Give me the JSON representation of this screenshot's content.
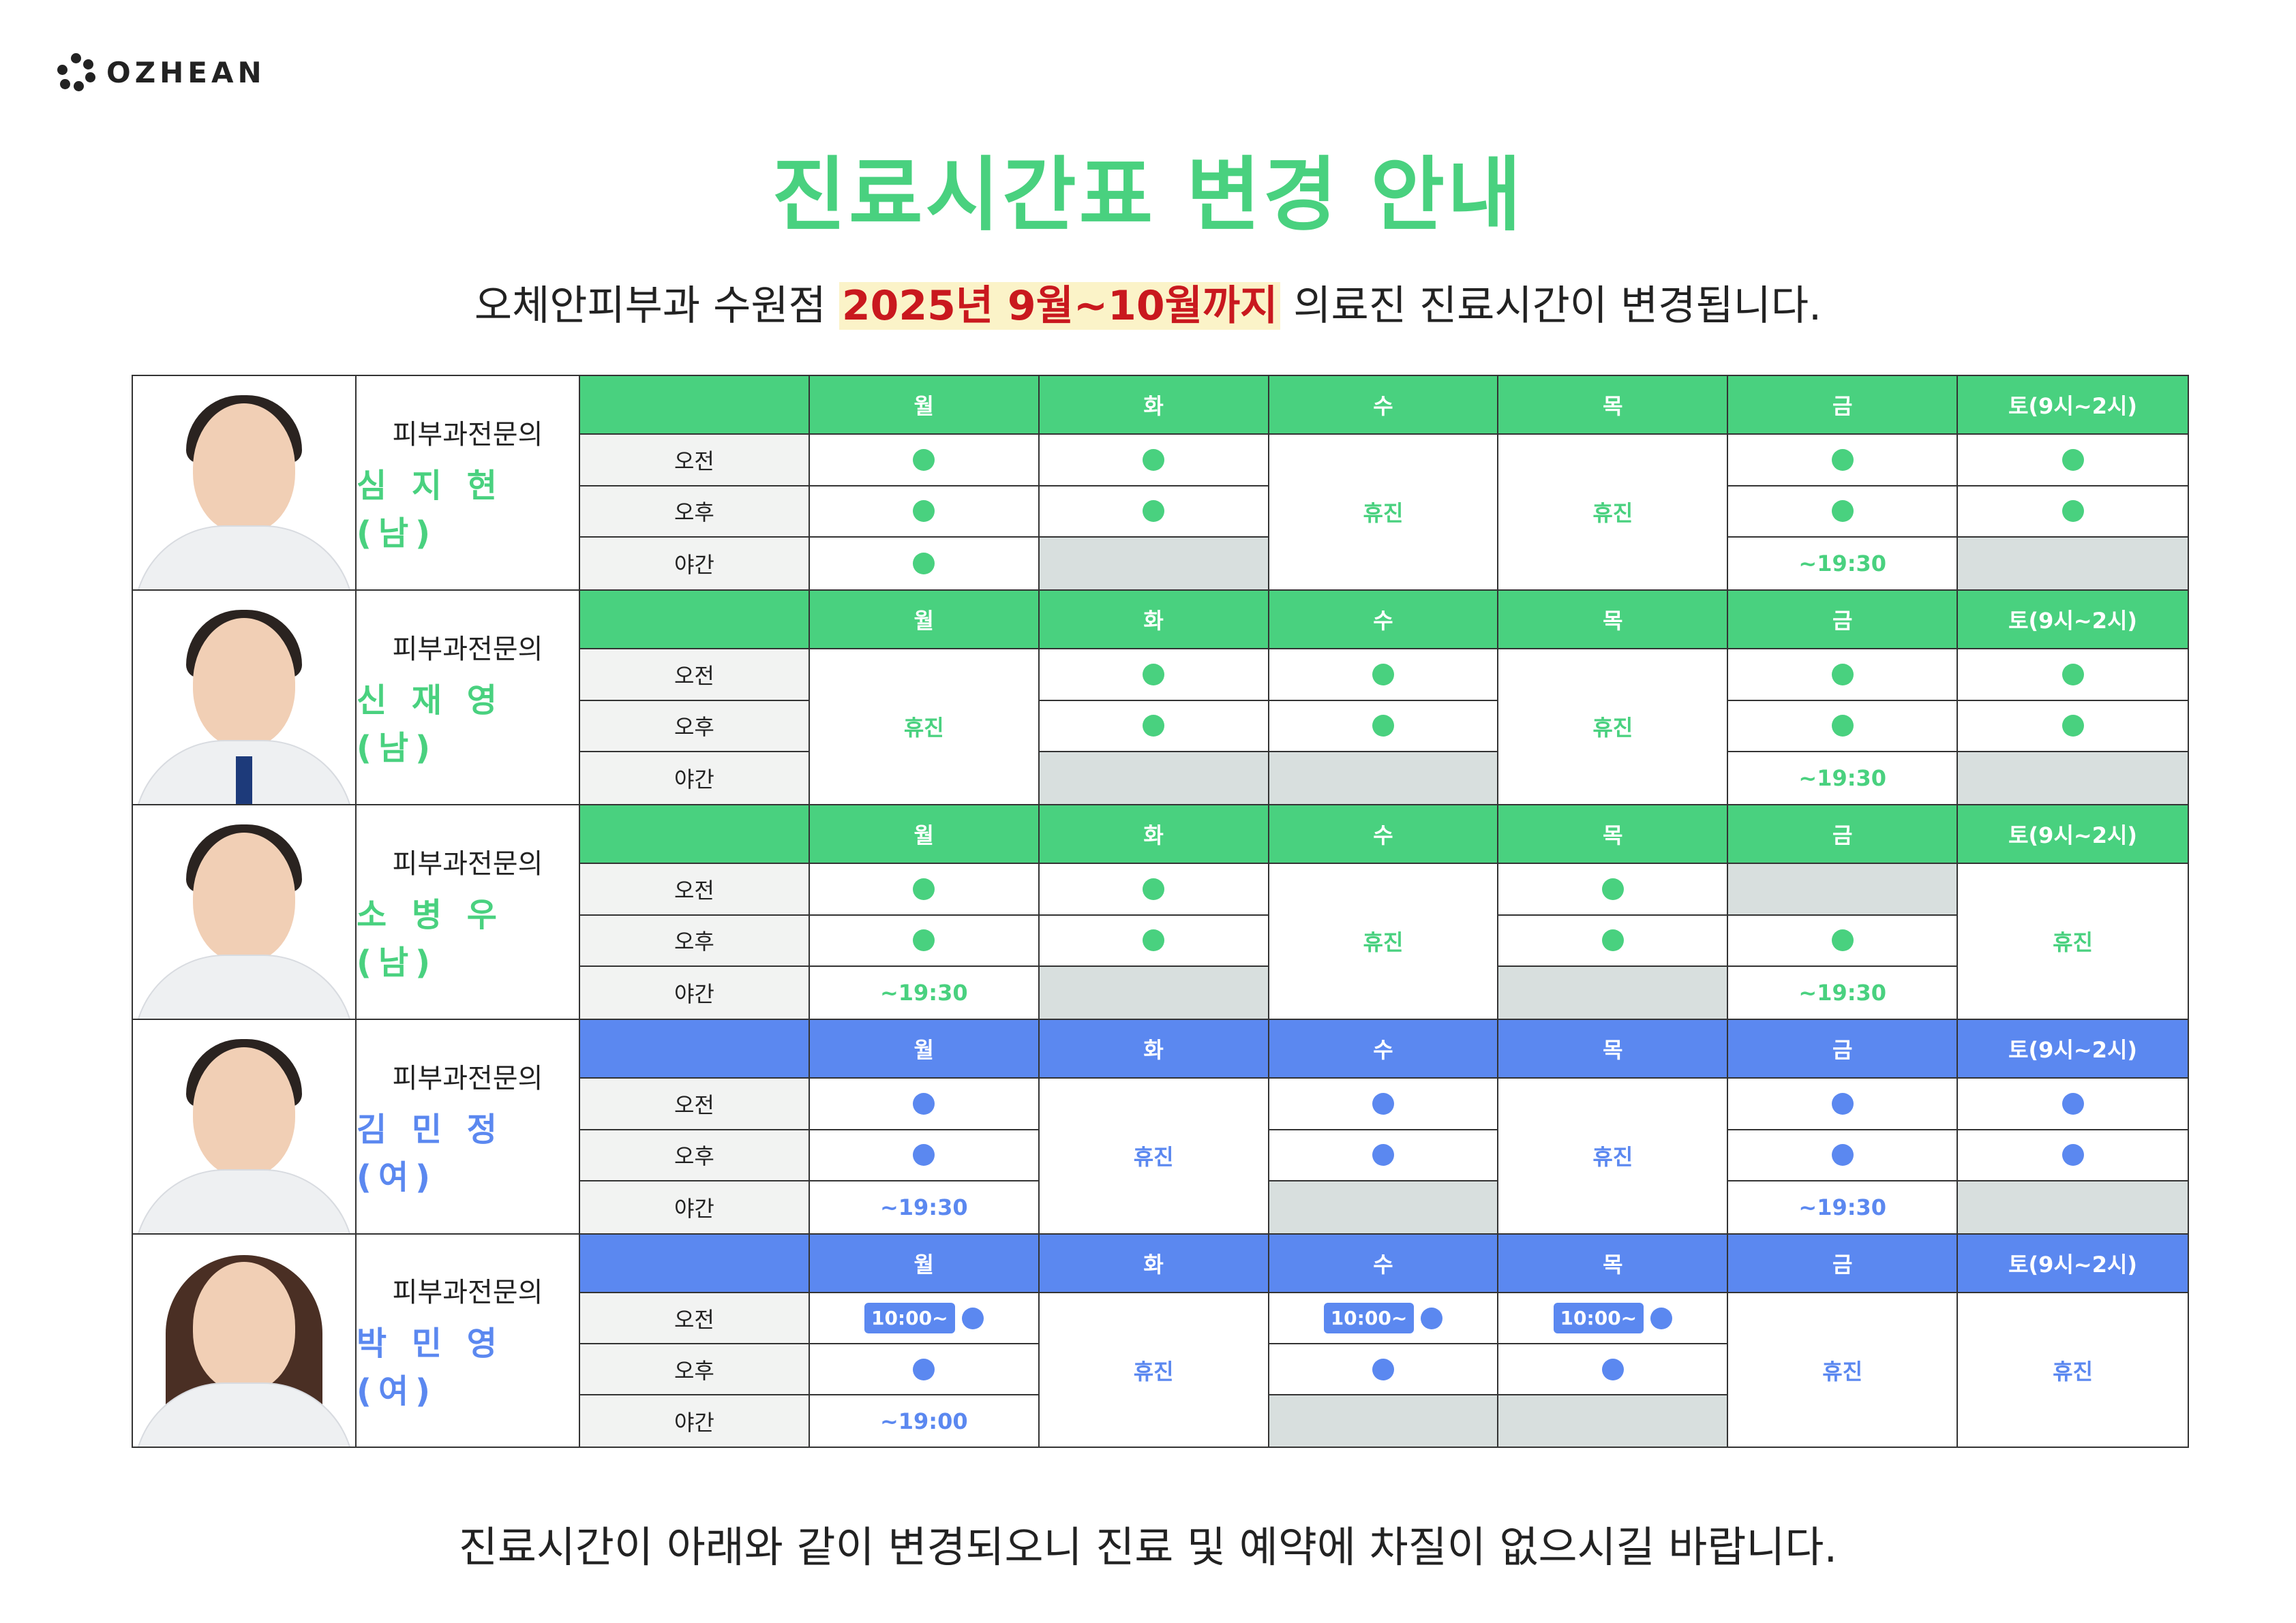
{
  "logo": {
    "text": "OZHEAN",
    "icon": "flower-dots-icon"
  },
  "title": "진료시간표 변경 안내",
  "subtitle": {
    "before": "오체안피부과 수원점 ",
    "highlight": "2025년 9월~10월까지",
    "after": " 의료진 진료시간이 변경됩니다."
  },
  "footer": "진료시간이 아래와 같이 변경되오니 진료 및 예약에 차질이 없으시길 바랍니다.",
  "colors": {
    "green": "#49d17f",
    "blue": "#5b88f0",
    "gray_cell": "#d8dfde",
    "highlight_red": "#c9181e"
  },
  "days": [
    "월",
    "화",
    "수",
    "목",
    "금",
    "토(9시~2시)"
  ],
  "periods": [
    "오전",
    "오후",
    "야간"
  ],
  "closed_label": "휴진",
  "doctors": [
    {
      "role": "피부과전문의",
      "name": "심 지 현(남)",
      "theme": "green",
      "photo": "male-doctor",
      "cells": [
        [
          {
            "t": "dot"
          },
          {
            "t": "dot"
          },
          {
            "t": "dot"
          }
        ],
        [
          {
            "t": "dot"
          },
          {
            "t": "dot"
          },
          {
            "t": "gray"
          }
        ],
        [
          {
            "t": "closed"
          }
        ],
        [
          {
            "t": "closed"
          }
        ],
        [
          {
            "t": "dot"
          },
          {
            "t": "dot"
          },
          {
            "t": "text",
            "v": "~19:30"
          }
        ],
        [
          {
            "t": "dot"
          },
          {
            "t": "dot"
          },
          {
            "t": "gray"
          }
        ]
      ]
    },
    {
      "role": "피부과전문의",
      "name": "신 재 영(남)",
      "theme": "green",
      "photo": "male-doctor-tie",
      "cells": [
        [
          {
            "t": "closed"
          }
        ],
        [
          {
            "t": "dot"
          },
          {
            "t": "dot"
          },
          {
            "t": "gray"
          }
        ],
        [
          {
            "t": "dot"
          },
          {
            "t": "dot"
          },
          {
            "t": "gray"
          }
        ],
        [
          {
            "t": "closed"
          }
        ],
        [
          {
            "t": "dot"
          },
          {
            "t": "dot"
          },
          {
            "t": "text",
            "v": "~19:30"
          }
        ],
        [
          {
            "t": "dot"
          },
          {
            "t": "dot"
          },
          {
            "t": "gray"
          }
        ]
      ]
    },
    {
      "role": "피부과전문의",
      "name": "소 병 우(남)",
      "theme": "green",
      "photo": "male-doctor",
      "cells": [
        [
          {
            "t": "dot"
          },
          {
            "t": "dot"
          },
          {
            "t": "text",
            "v": "~19:30"
          }
        ],
        [
          {
            "t": "dot"
          },
          {
            "t": "dot"
          },
          {
            "t": "gray"
          }
        ],
        [
          {
            "t": "closed"
          }
        ],
        [
          {
            "t": "dot"
          },
          {
            "t": "dot"
          },
          {
            "t": "gray"
          }
        ],
        [
          {
            "t": "gray"
          },
          {
            "t": "dot"
          },
          {
            "t": "text",
            "v": "~19:30"
          }
        ],
        [
          {
            "t": "closed"
          }
        ]
      ]
    },
    {
      "role": "피부과전문의",
      "name": "김 민 정(여)",
      "theme": "blue",
      "photo": "female-doctor",
      "cells": [
        [
          {
            "t": "dot"
          },
          {
            "t": "dot"
          },
          {
            "t": "text",
            "v": "~19:30"
          }
        ],
        [
          {
            "t": "closed"
          }
        ],
        [
          {
            "t": "dot"
          },
          {
            "t": "dot"
          },
          {
            "t": "gray"
          }
        ],
        [
          {
            "t": "closed"
          }
        ],
        [
          {
            "t": "dot"
          },
          {
            "t": "dot"
          },
          {
            "t": "text",
            "v": "~19:30"
          }
        ],
        [
          {
            "t": "dot"
          },
          {
            "t": "dot"
          },
          {
            "t": "gray"
          }
        ]
      ]
    },
    {
      "role": "피부과전문의",
      "name": "박 민 영(여)",
      "theme": "blue",
      "photo": "female-doctor-long-hair",
      "cells": [
        [
          {
            "t": "dot",
            "badge": "10:00~"
          },
          {
            "t": "dot"
          },
          {
            "t": "text",
            "v": "~19:00"
          }
        ],
        [
          {
            "t": "closed"
          }
        ],
        [
          {
            "t": "dot",
            "badge": "10:00~"
          },
          {
            "t": "dot"
          },
          {
            "t": "gray"
          }
        ],
        [
          {
            "t": "dot",
            "badge": "10:00~"
          },
          {
            "t": "dot"
          },
          {
            "t": "gray"
          }
        ],
        [
          {
            "t": "closed"
          }
        ],
        [
          {
            "t": "closed"
          }
        ]
      ]
    }
  ]
}
